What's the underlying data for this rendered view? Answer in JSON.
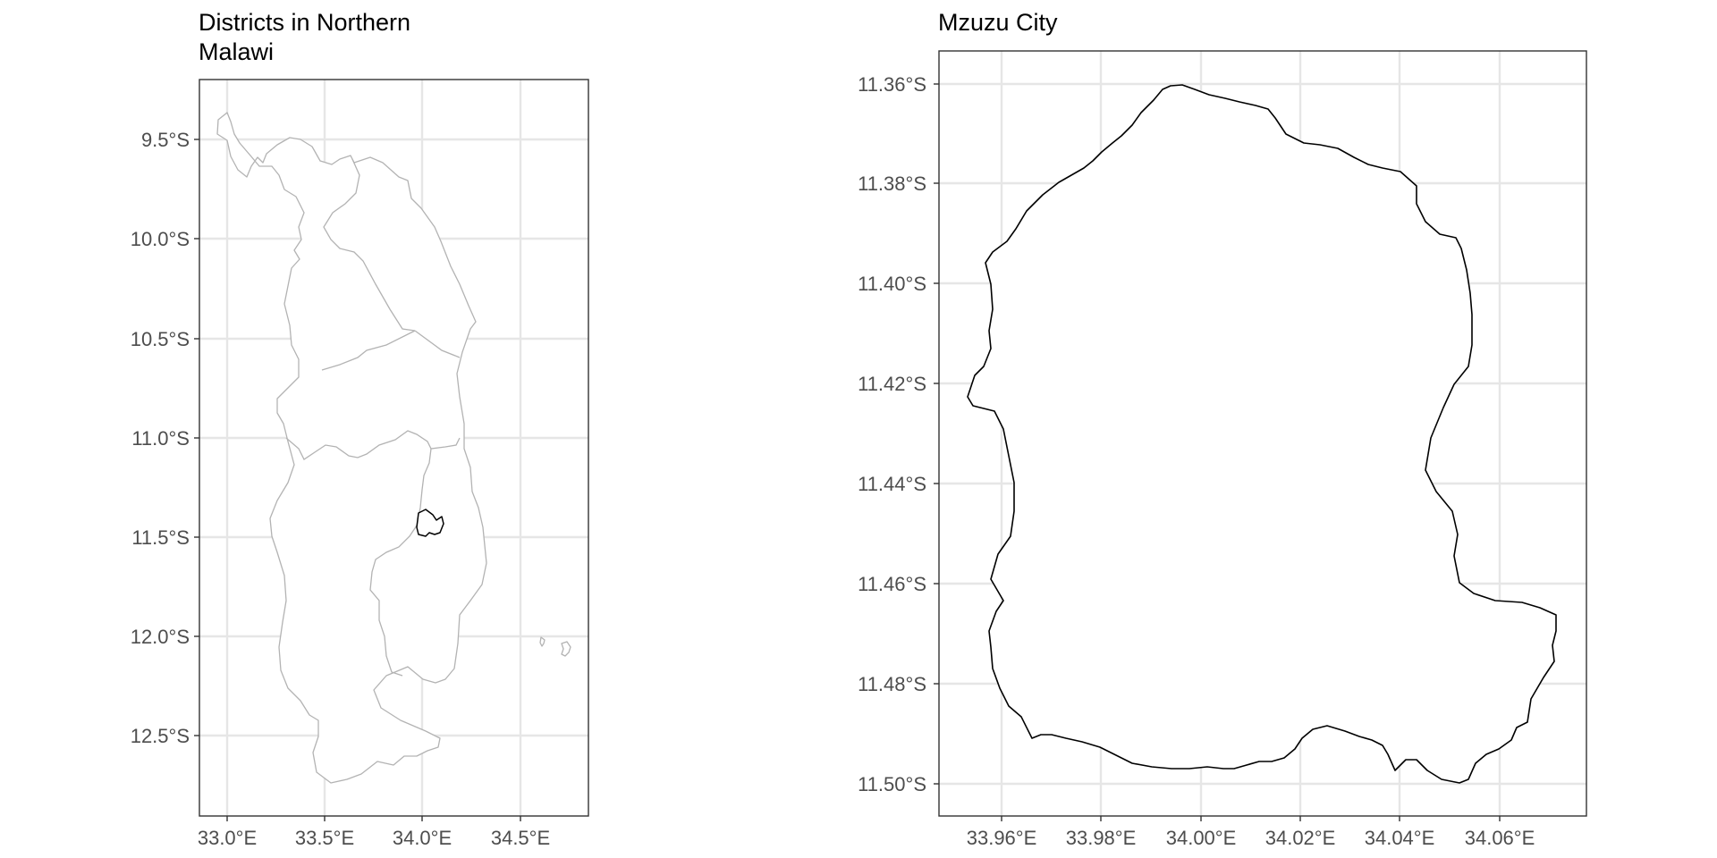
{
  "left_panel": {
    "title_line1": "Districts in Northern",
    "title_line2": "Malawi",
    "y_ticks": [
      {
        "value": -9.5,
        "label": "9.5°S"
      },
      {
        "value": -10.0,
        "label": "10.0°S"
      },
      {
        "value": -10.5,
        "label": "10.5°S"
      },
      {
        "value": -11.0,
        "label": "11.0°S"
      },
      {
        "value": -11.5,
        "label": "11.5°S"
      },
      {
        "value": -12.0,
        "label": "12.0°S"
      },
      {
        "value": -12.5,
        "label": "12.5°S"
      }
    ],
    "x_ticks": [
      {
        "value": 33.0,
        "label": "33.0°E"
      },
      {
        "value": 33.5,
        "label": "33.5°E"
      },
      {
        "value": 34.0,
        "label": "34.0°E"
      },
      {
        "value": 34.5,
        "label": "34.5°E"
      }
    ]
  },
  "right_panel": {
    "title": "Mzuzu City",
    "y_ticks": [
      {
        "value": -11.36,
        "label": "11.36°S"
      },
      {
        "value": -11.38,
        "label": "11.38°S"
      },
      {
        "value": -11.4,
        "label": "11.40°S"
      },
      {
        "value": -11.42,
        "label": "11.42°S"
      },
      {
        "value": -11.44,
        "label": "11.44°S"
      },
      {
        "value": -11.46,
        "label": "11.46°S"
      },
      {
        "value": -11.48,
        "label": "11.48°S"
      },
      {
        "value": -11.5,
        "label": "11.50°S"
      }
    ],
    "x_ticks": [
      {
        "value": 33.96,
        "label": "33.96°E"
      },
      {
        "value": 33.98,
        "label": "33.98°E"
      },
      {
        "value": 34.0,
        "label": "34.00°E"
      },
      {
        "value": 34.02,
        "label": "34.02°E"
      },
      {
        "value": 34.04,
        "label": "34.04°E"
      },
      {
        "value": 34.06,
        "label": "34.06°E"
      }
    ]
  },
  "colors": {
    "background": "#ffffff",
    "grid": "#e6e6e6",
    "panel_border": "#333333",
    "tick_text": "#4d4d4d",
    "district_stroke": "#b3b3b3",
    "city_stroke": "#000000"
  }
}
